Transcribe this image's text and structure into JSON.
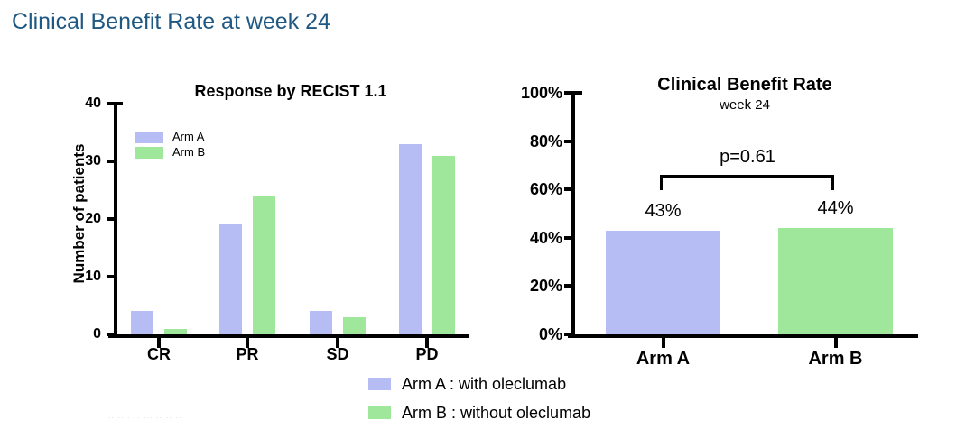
{
  "page": {
    "title": "Clinical Benefit Rate at week 24",
    "title_color": "#1f5882",
    "background": "#ffffff"
  },
  "colors": {
    "arm_a": "#b6bdf5",
    "arm_b": "#9fe79a",
    "axis": "#000000"
  },
  "chart_data": [
    {
      "id": "recist-response",
      "type": "bar",
      "title": "Response by RECIST 1.1",
      "xlabel": "",
      "ylabel": "Number of patients",
      "categories": [
        "CR",
        "PR",
        "SD",
        "PD"
      ],
      "series": [
        {
          "name": "Arm A",
          "color": "#b6bdf5",
          "values": [
            4,
            19,
            4,
            33
          ]
        },
        {
          "name": "Arm B",
          "color": "#9fe79a",
          "values": [
            1,
            24,
            3,
            31
          ]
        }
      ],
      "ylim": [
        0,
        40
      ],
      "yticks": [
        0,
        10,
        20,
        30,
        40
      ],
      "grid": false,
      "legend_position": "inside-top-left"
    },
    {
      "id": "clinical-benefit-rate",
      "type": "bar",
      "title": "Clinical Benefit Rate",
      "subtitle": "week 24",
      "xlabel": "",
      "ylabel": "",
      "categories": [
        "Arm A",
        "Arm B"
      ],
      "values": [
        43,
        44
      ],
      "value_labels": [
        "43%",
        "44%"
      ],
      "bar_colors": [
        "#b6bdf5",
        "#9fe79a"
      ],
      "ylim": [
        0,
        100
      ],
      "yticks": [
        0,
        20,
        40,
        60,
        80,
        100
      ],
      "ytick_labels": [
        "0%",
        "20%",
        "40%",
        "60%",
        "80%",
        "100%"
      ],
      "grid": false,
      "annotation": {
        "type": "bracket",
        "text": "p=0.61"
      }
    }
  ],
  "bottom_legend": [
    {
      "swatch_color": "#b6bdf5",
      "label": "Arm A : with oleclumab"
    },
    {
      "swatch_color": "#9fe79a",
      "label": "Arm B : without oleclumab"
    }
  ],
  "footer_marks": "-- -- - -- --- -- -- --"
}
